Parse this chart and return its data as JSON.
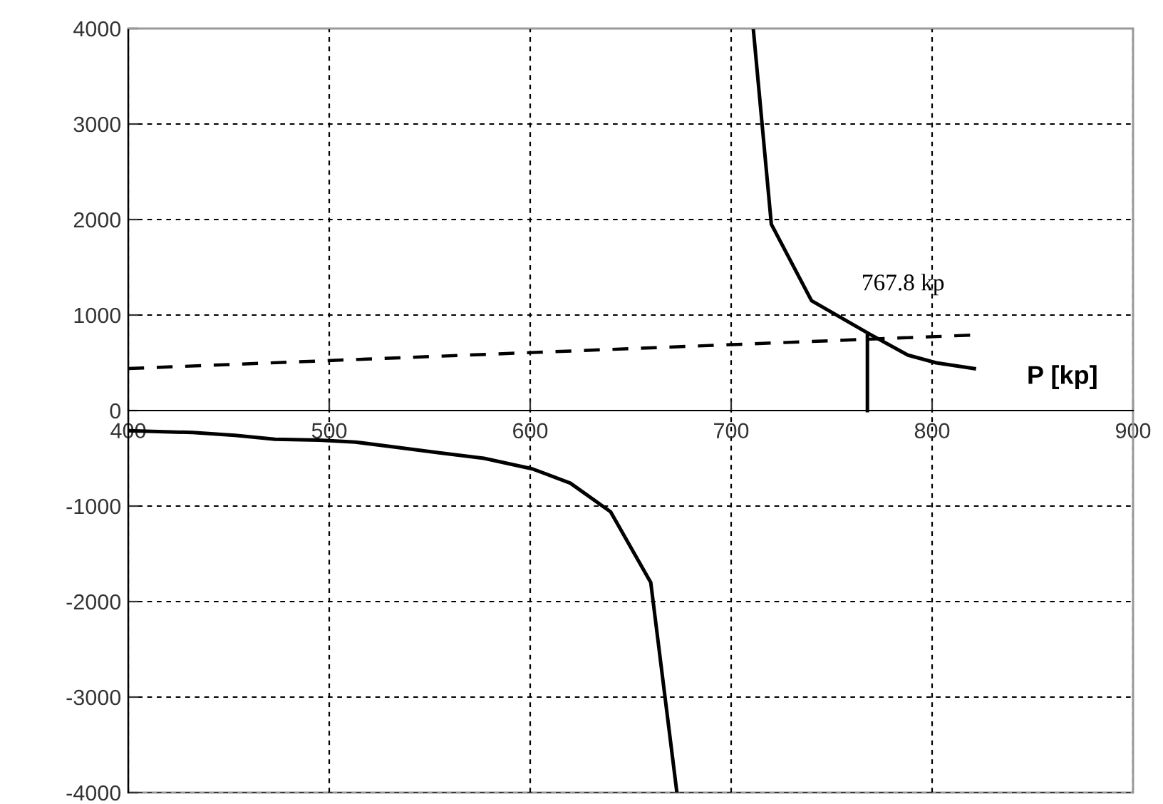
{
  "chart_data": {
    "type": "line",
    "xlabel": "P [kp]",
    "xlim": [
      400,
      900
    ],
    "xticks": [
      400,
      500,
      600,
      700,
      800,
      900
    ],
    "ylim": [
      -4000,
      4000
    ],
    "yticks": [
      -4000,
      -3000,
      -2000,
      -1000,
      0,
      1000,
      2000,
      3000,
      4000
    ],
    "grid": true,
    "marker": "none",
    "series": [
      {
        "color": "#000000",
        "x": [
          400,
          432,
          453,
          473,
          495,
          513,
          532,
          554,
          577,
          601,
          620,
          640,
          660,
          673
        ],
        "values": [
          -210,
          -230,
          -260,
          -300,
          -310,
          -330,
          -380,
          -440,
          -500,
          -610,
          -760,
          -1060,
          -1800,
          -4000
        ]
      },
      {
        "color": "#000000",
        "x": [
          711,
          720,
          740,
          769,
          788,
          802,
          821
        ],
        "values": [
          4000,
          1950,
          1150,
          800,
          580,
          500,
          440
        ]
      },
      {
        "color": "#000000",
        "line_style": "dashed",
        "x": [
          400,
          820
        ],
        "values": [
          440,
          790
        ]
      },
      {
        "color": "#000000",
        "x": [
          767.8,
          767.8
        ],
        "values": [
          0,
          780
        ]
      }
    ],
    "annotations": [
      {
        "text": "767.8 kp",
        "x": 767.8,
        "y": 780
      }
    ]
  }
}
